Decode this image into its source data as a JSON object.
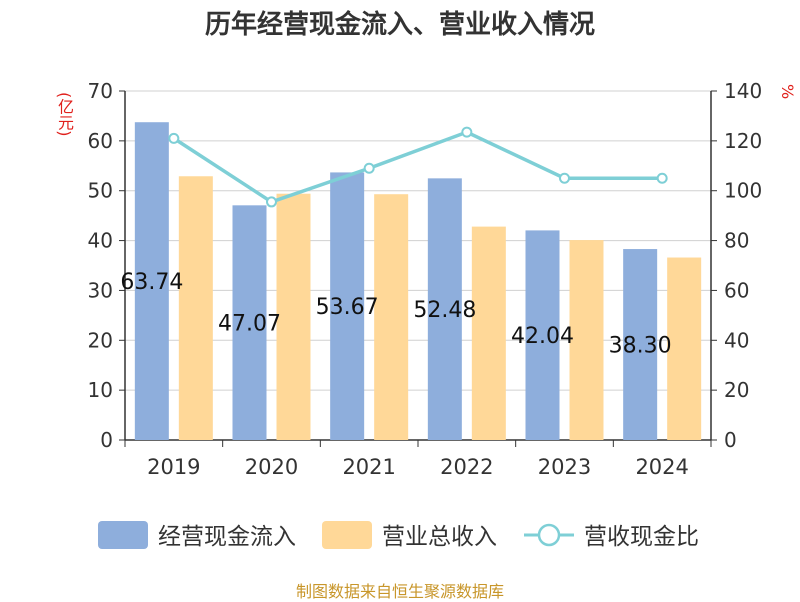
{
  "title": "历年经营现金流入、营业收入情况",
  "source": "制图数据来自恒生聚源数据库",
  "colors": {
    "cash_inflow": "#8eaedc",
    "revenue": "#ffd898",
    "ratio": "#7ecfd6",
    "unit": "#e0201c",
    "source": "#c8962a"
  },
  "chart_data": {
    "type": "bar",
    "title": "历年经营现金流入、营业收入情况",
    "categories": [
      "2019",
      "2020",
      "2021",
      "2022",
      "2023",
      "2024"
    ],
    "y_left": {
      "label": "(亿元)",
      "lim": [
        0,
        70
      ],
      "ticks": [
        0,
        10,
        20,
        30,
        40,
        50,
        60,
        70
      ]
    },
    "y_right": {
      "label": "%",
      "lim": [
        0,
        140
      ],
      "ticks": [
        0,
        20,
        40,
        60,
        80,
        100,
        120,
        140
      ]
    },
    "grid": true,
    "legend_position": "bottom",
    "series": [
      {
        "name": "经营现金流入",
        "type": "bar",
        "axis": "left",
        "values": [
          63.74,
          47.07,
          53.67,
          52.48,
          42.04,
          38.3
        ],
        "labels": [
          "63.74",
          "47.07",
          "53.67",
          "52.48",
          "42.04",
          "38.30"
        ]
      },
      {
        "name": "营业总收入",
        "type": "bar",
        "axis": "left",
        "values": [
          52.9,
          49.4,
          49.3,
          42.8,
          40.1,
          36.6
        ]
      },
      {
        "name": "营收现金比",
        "type": "line",
        "axis": "right",
        "values": [
          121,
          95.5,
          109,
          123.5,
          105,
          105
        ]
      }
    ]
  }
}
